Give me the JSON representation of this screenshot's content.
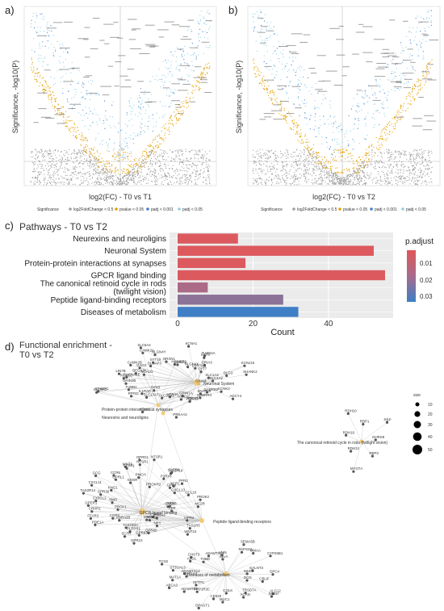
{
  "panels": {
    "a": {
      "letter": "a)",
      "xlabel": "log2(FC) - T0 vs T1",
      "ylabel": "Significance, -log10(P)"
    },
    "b": {
      "letter": "b)",
      "xlabel": "log2(FC) - T0 vs T2",
      "ylabel": "Significance, -log10(P)"
    },
    "c": {
      "letter": "c)",
      "title": "Pathways - T0 vs T2"
    },
    "d": {
      "letter": "d)",
      "title_line1": "Functional enrichment -",
      "title_line2": "T0 vs T2"
    }
  },
  "volcano_legend": {
    "title": "Significance",
    "items": [
      {
        "label": "log2FoldChange < 0.5",
        "color": "#9e9e9e"
      },
      {
        "label": "pvalue < 0.05",
        "color": "#e69f00"
      },
      {
        "label": "padj < 0.001",
        "color": "#3f7fd1"
      },
      {
        "label": "padj < 0.05",
        "color": "#8fd0e6"
      }
    ]
  },
  "chart_data": [
    {
      "panel": "a",
      "type": "scatter",
      "xlabel": "log2(FC) - T0 vs T1",
      "ylabel": "Significance, -log10(P)"
    },
    {
      "panel": "b",
      "type": "scatter",
      "xlabel": "log2(FC) - T0 vs T2",
      "ylabel": "Significance, -log10(P)"
    },
    {
      "panel": "c",
      "type": "bar",
      "orientation": "horizontal",
      "title": "Pathways - T0 vs T2",
      "xlabel": "Count",
      "xlim": [
        0,
        55
      ],
      "xticks": [
        0,
        20,
        40
      ],
      "categories": [
        "Neurexins and neuroligins",
        "Neuronal System",
        "Protein-protein interactions at synapses",
        "GPCR ligand binding",
        "The canonical retinoid cycle in rods (twilight vision)",
        "Peptide ligand-binding receptors",
        "Diseases of metabolism"
      ],
      "category_lines": [
        [
          "Neurexins and neuroligins"
        ],
        [
          "Neuronal System"
        ],
        [
          "Protein-protein interactions at synapses"
        ],
        [
          "GPCR ligand binding"
        ],
        [
          "The canonical retinoid cycle in rods",
          "(twilight vision)"
        ],
        [
          "Peptide ligand-binding receptors"
        ],
        [
          "Diseases of metabolism"
        ]
      ],
      "values": [
        16,
        52,
        18,
        55,
        8,
        28,
        32
      ],
      "p_adjust": [
        0.005,
        0.005,
        0.005,
        0.005,
        0.025,
        0.02,
        0.036
      ],
      "colors": [
        "#dc5a5e",
        "#dc5a5e",
        "#dc5a5e",
        "#dc5a5e",
        "#ab6a86",
        "#8b7296",
        "#3f7fc6"
      ],
      "legend": {
        "title": "p.adjust",
        "ticks": [
          "0.01",
          "0.02",
          "0.03"
        ],
        "placement": "right"
      }
    },
    {
      "panel": "d",
      "type": "network",
      "pathways": [
        "Neuronal System",
        "Protein-protein interactions at synapses",
        "Neurexins and neuroligins",
        "GPCR ligand binding",
        "Peptide ligand-binding receptors",
        "Diseases of metabolism",
        "The canonical retinoid cycle in rods (twilight vision)"
      ],
      "size_legend": {
        "title": "size",
        "values": [
          "10",
          "20",
          "30",
          "40",
          "50"
        ]
      }
    }
  ],
  "network": {
    "genes_a": [
      "SLC1A2",
      "GRIA4",
      "KCNK3",
      "ADCY4",
      "SNAP25",
      "GABRB2",
      "GABRR3",
      "HTR3D",
      "GRIN1A",
      "ADCY5",
      "HTR2C",
      "PRKAA2",
      "HTR3A",
      "SLC32A1",
      "KCNS1",
      "SYN3",
      "SLC17A7",
      "PPFID",
      "IL1RAP",
      "TUBB2",
      "SLC6A3",
      "STXBP1",
      "GRIN2B",
      "CACNA1E",
      "KCNS1",
      "LIN7B",
      "BEGAIN",
      "NCALD",
      "CAMK2B",
      "GAD2",
      "DLGAP3",
      "SYT10",
      "SLC6A4",
      "CAMK2A",
      "NLGN4Y",
      "NRXN1",
      "HOMER1",
      "KCNC2",
      "KCNA1",
      "NLGN4X",
      "TUBB4A",
      "SYT4",
      "LRRTM3",
      "GRIA3",
      "KCNJ15",
      "SYT7",
      "DLG3",
      "SHANK2",
      "SLC1A3"
    ],
    "genes_b": [
      "GRM1",
      "GNG8",
      "APP",
      "VIPR2",
      "TAS1R3",
      "WNT16",
      "PTCH2",
      "NPY",
      "PTH1R",
      "HTR2A",
      "GRM6",
      "GPR65",
      "GPR10",
      "GPR83",
      "SCTR",
      "PLPPR1",
      "TAS2R20",
      "ADRA2B",
      "CCR3",
      "PDE1A",
      "FFAR3",
      "PRCK1",
      "CRHR1",
      "GPER1",
      "CX3CL1",
      "SMO",
      "TAS2R14",
      "GPR39",
      "CXCL11",
      "KNG1",
      "GCG",
      "OPRL1",
      "CCR6",
      "GHSR",
      "WNT6",
      "FFPR1",
      "PMCH",
      "NTSR1",
      "OPRD1",
      "PROKR2",
      "NTSR1",
      "P2RY6",
      "TAS2R19",
      "S1PR4",
      "GPR4",
      "FPR2",
      "XCR1",
      "CXCL13",
      "CCL19",
      "PROK2",
      "MC2R"
    ],
    "genes_c": [
      "CBLIF",
      "DCN",
      "ALG12",
      "SGSH",
      "TRSD7A",
      "ACAN",
      "COLK",
      "MUC1",
      "CD320",
      "DPAGT1",
      "PPP1R3C",
      "ADAMTS5",
      "SFTPC",
      "ABCA3",
      "MAT1A",
      "UGT1A4",
      "ADAMTS14",
      "ST3GAL3",
      "TCN2",
      "ALG1",
      "CHST3",
      "THBD",
      "ADAMTSL1",
      "VMN",
      "IDUA",
      "SEMA5B",
      "PAPSS2",
      "MMAA",
      "CYP26B1",
      "GALNT3",
      "MUC2",
      "GPC4"
    ],
    "genes_r": [
      "DHRS9",
      "RBP3",
      "MYO7A",
      "RDH12",
      "RDH16",
      "RDH10",
      "RBP1",
      "RBP"
    ]
  }
}
